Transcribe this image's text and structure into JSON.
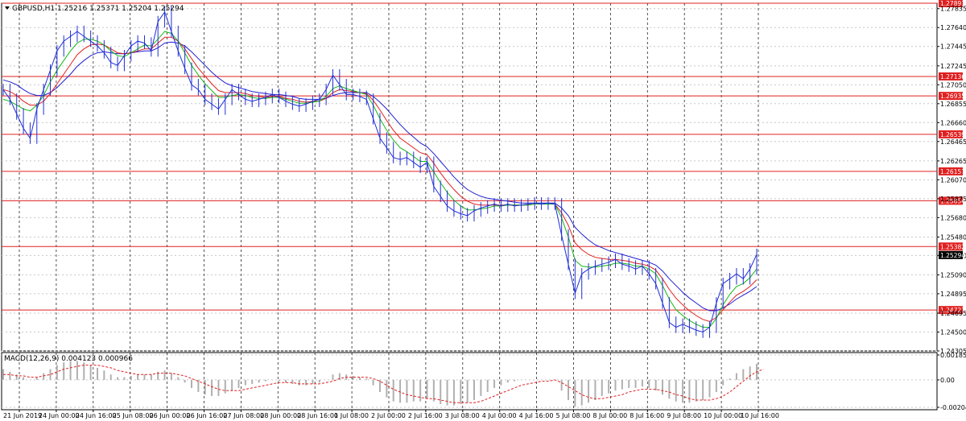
{
  "chart_header": {
    "title": "GBPUSD,H1  1.25216 1.25371 1.25204 1.25294",
    "menu_icon": "triangle-down-icon"
  },
  "macd_header": {
    "title": "MACD(12,26,9) 0.004123 0.000966"
  },
  "colors": {
    "price": "#1f2fd6",
    "ma_fast": "#16b816",
    "ma_mid": "#e02020",
    "ma_slow": "#2020d0",
    "levels": "#e02020",
    "macd_hist": "#b0b0b0",
    "macd_signal": "#e02020",
    "grid": "#c8c8c8",
    "price_tag": "#000000"
  },
  "chart_data": [
    {
      "type": "line",
      "name_printed": "GBPUSD,H1",
      "ylim": [
        1.24305,
        1.27891
      ],
      "y_ticks": [
        "1.27835",
        "1.27640",
        "1.27445",
        "1.27245",
        "1.27050",
        "1.26855",
        "1.26660",
        "1.26465",
        "1.26265",
        "1.26070",
        "1.25875",
        "1.25680",
        "1.25480",
        "1.25290",
        "1.25090",
        "1.24895",
        "1.24695",
        "1.24500",
        "1.24305"
      ],
      "x_ticks": [
        "21 Jun 2019",
        "24 Jun 00:00",
        "24 Jun 16:00",
        "25 Jun 08:00",
        "26 Jun 00:00",
        "26 Jun 16:00",
        "27 Jun 08:00",
        "28 Jun 00:00",
        "28 Jun 16:00",
        "1 Jul 08:00",
        "2 Jul 00:00",
        "2 Jul 16:00",
        "3 Jul 08:00",
        "4 Jul 00:00",
        "4 Jul 16:00",
        "5 Jul 08:00",
        "8 Jul 00:00",
        "8 Jul 16:00",
        "9 Jul 08:00",
        "10 Jul 00:00",
        "10 Jul 16:00"
      ],
      "levels": [
        "1.27891",
        "1.27136",
        "1.26935",
        "1.26539",
        "1.26157",
        "1.25854",
        "1.25382",
        "1.24727"
      ],
      "current_price": "1.25294",
      "close": [
        1.27,
        1.269,
        1.2675,
        1.266,
        1.265,
        1.268,
        1.27,
        1.272,
        1.274,
        1.275,
        1.2755,
        1.276,
        1.2755,
        1.275,
        1.2745,
        1.2738,
        1.2728,
        1.2725,
        1.2735,
        1.2745,
        1.275,
        1.2748,
        1.274,
        1.277,
        1.278,
        1.276,
        1.274,
        1.2722,
        1.2705,
        1.27,
        1.269,
        1.2685,
        1.268,
        1.269,
        1.27,
        1.2695,
        1.269,
        1.2688,
        1.269,
        1.2692,
        1.2695,
        1.2692,
        1.2688,
        1.2685,
        1.2683,
        1.2685,
        1.2688,
        1.269,
        1.27,
        1.2715,
        1.2705,
        1.2695,
        1.2695,
        1.2693,
        1.269,
        1.267,
        1.265,
        1.264,
        1.263,
        1.2628,
        1.263,
        1.2625,
        1.262,
        1.2625,
        1.26,
        1.259,
        1.258,
        1.2575,
        1.2572,
        1.257,
        1.2575,
        1.2578,
        1.258,
        1.2582,
        1.258,
        1.2582,
        1.258,
        1.2581,
        1.2582,
        1.2583,
        1.2582,
        1.2583,
        1.2582,
        1.255,
        1.252,
        1.249,
        1.251,
        1.2515,
        1.2518,
        1.252,
        1.2522,
        1.2525,
        1.252,
        1.2518,
        1.2515,
        1.2518,
        1.251,
        1.25,
        1.248,
        1.246,
        1.2455,
        1.2458,
        1.2455,
        1.2452,
        1.245,
        1.2455,
        1.248,
        1.25,
        1.2505,
        1.251,
        1.2505,
        1.2515,
        1.253
      ],
      "ma_fast": [
        1.269,
        1.2688,
        1.2684,
        1.268,
        1.2678,
        1.2684,
        1.2694,
        1.2708,
        1.272,
        1.273,
        1.274,
        1.2748,
        1.2752,
        1.2752,
        1.275,
        1.2746,
        1.274,
        1.2735,
        1.2734,
        1.2738,
        1.2742,
        1.2746,
        1.2745,
        1.2752,
        1.276,
        1.2758,
        1.275,
        1.2738,
        1.2725,
        1.2715,
        1.2706,
        1.2699,
        1.2692,
        1.2692,
        1.2694,
        1.2695,
        1.2694,
        1.2692,
        1.2691,
        1.2691,
        1.2692,
        1.2692,
        1.269,
        1.2688,
        1.2686,
        1.2686,
        1.2687,
        1.2688,
        1.2693,
        1.2701,
        1.2704,
        1.2701,
        1.2699,
        1.2697,
        1.2695,
        1.2684,
        1.267,
        1.2658,
        1.2648,
        1.264,
        1.2636,
        1.2631,
        1.2626,
        1.2626,
        1.2615,
        1.2604,
        1.2594,
        1.2586,
        1.258,
        1.2576,
        1.2576,
        1.2577,
        1.2578,
        1.258,
        1.258,
        1.2581,
        1.2581,
        1.2581,
        1.2581,
        1.2582,
        1.2582,
        1.2582,
        1.2582,
        1.2568,
        1.2548,
        1.2524,
        1.2518,
        1.2517,
        1.2517,
        1.2518,
        1.2519,
        1.2521,
        1.2521,
        1.252,
        1.2518,
        1.2518,
        1.2515,
        1.251,
        1.2498,
        1.2484,
        1.2473,
        1.2467,
        1.2462,
        1.2458,
        1.2455,
        1.2455,
        1.2464,
        1.2478,
        1.2489,
        1.2497,
        1.25,
        1.2506,
        1.2515
      ],
      "ma_mid": [
        1.27,
        1.2698,
        1.2694,
        1.2688,
        1.2684,
        1.2684,
        1.2688,
        1.2696,
        1.2706,
        1.2716,
        1.2726,
        1.2736,
        1.2742,
        1.2746,
        1.2747,
        1.2746,
        1.2742,
        1.2738,
        1.2737,
        1.2738,
        1.274,
        1.2742,
        1.2742,
        1.2748,
        1.2754,
        1.2754,
        1.275,
        1.2742,
        1.2732,
        1.2722,
        1.2714,
        1.2706,
        1.2699,
        1.2697,
        1.2697,
        1.2697,
        1.2696,
        1.2694,
        1.2693,
        1.2692,
        1.2693,
        1.2693,
        1.2691,
        1.269,
        1.2688,
        1.2687,
        1.2688,
        1.2688,
        1.2691,
        1.2697,
        1.27,
        1.2699,
        1.2698,
        1.2697,
        1.2696,
        1.2689,
        1.2679,
        1.2668,
        1.2658,
        1.265,
        1.2645,
        1.264,
        1.2635,
        1.2633,
        1.2624,
        1.2614,
        1.2605,
        1.2597,
        1.259,
        1.2585,
        1.2582,
        1.2581,
        1.2581,
        1.2581,
        1.2581,
        1.2581,
        1.2581,
        1.2581,
        1.2581,
        1.2582,
        1.2582,
        1.2582,
        1.2582,
        1.2573,
        1.256,
        1.2542,
        1.2535,
        1.253,
        1.2527,
        1.2526,
        1.2525,
        1.2525,
        1.2524,
        1.2523,
        1.2521,
        1.252,
        1.2518,
        1.2514,
        1.2505,
        1.2494,
        1.2485,
        1.2478,
        1.2472,
        1.2467,
        1.2463,
        1.2461,
        1.2465,
        1.2473,
        1.2481,
        1.2488,
        1.2492,
        1.2497,
        1.2504
      ],
      "ma_slow": [
        1.271,
        1.2708,
        1.2705,
        1.27,
        1.2696,
        1.2694,
        1.2694,
        1.2697,
        1.2702,
        1.2709,
        1.2716,
        1.2724,
        1.273,
        1.2735,
        1.2738,
        1.2739,
        1.2738,
        1.2737,
        1.2737,
        1.2738,
        1.2739,
        1.274,
        1.274,
        1.2743,
        1.2748,
        1.2749,
        1.2748,
        1.2745,
        1.2739,
        1.2732,
        1.2725,
        1.2718,
        1.2712,
        1.2707,
        1.2704,
        1.2702,
        1.27,
        1.2698,
        1.2697,
        1.2696,
        1.2695,
        1.2695,
        1.2694,
        1.2693,
        1.2691,
        1.269,
        1.269,
        1.269,
        1.2691,
        1.2694,
        1.2696,
        1.2697,
        1.2697,
        1.2697,
        1.2697,
        1.2693,
        1.2687,
        1.268,
        1.2672,
        1.2664,
        1.2657,
        1.2651,
        1.2645,
        1.2641,
        1.2634,
        1.2626,
        1.2618,
        1.261,
        1.2603,
        1.2597,
        1.2593,
        1.259,
        1.2588,
        1.2587,
        1.2586,
        1.2585,
        1.2584,
        1.2583,
        1.2583,
        1.2583,
        1.2583,
        1.2583,
        1.2583,
        1.2578,
        1.257,
        1.2558,
        1.2551,
        1.2545,
        1.254,
        1.2537,
        1.2534,
        1.2532,
        1.253,
        1.2528,
        1.2526,
        1.2524,
        1.2522,
        1.2519,
        1.2513,
        1.2505,
        1.2498,
        1.2491,
        1.2485,
        1.248,
        1.2475,
        1.2472,
        1.2472,
        1.2475,
        1.2479,
        1.2484,
        1.2488,
        1.2492,
        1.2497
      ]
    },
    {
      "type": "bar",
      "name_printed": "MACD(12,26,9)",
      "ylim": [
        -0.002041,
        0.001853
      ],
      "y_ticks": [
        "0.001853",
        "0.00",
        "-0.002041"
      ],
      "histogram": [
        0.0008,
        0.0006,
        0.0004,
        0.0002,
        0.0,
        0.0002,
        0.0005,
        0.0008,
        0.0011,
        0.0013,
        0.0014,
        0.0014,
        0.0013,
        0.0011,
        0.0009,
        0.0007,
        0.0004,
        0.0002,
        0.0002,
        0.0003,
        0.0004,
        0.0004,
        0.0004,
        0.0006,
        0.0007,
        0.0005,
        0.0002,
        -0.0002,
        -0.0006,
        -0.0009,
        -0.0011,
        -0.0012,
        -0.0012,
        -0.001,
        -0.0008,
        -0.0006,
        -0.0004,
        -0.0003,
        -0.0002,
        -0.0001,
        0.0,
        -0.0001,
        -0.0002,
        -0.0003,
        -0.0004,
        -0.0004,
        -0.0003,
        -0.0002,
        0.0,
        0.0004,
        0.0005,
        0.0004,
        0.0003,
        0.0002,
        0.0001,
        -0.0004,
        -0.0009,
        -0.0013,
        -0.0016,
        -0.0017,
        -0.0017,
        -0.0016,
        -0.0016,
        -0.0014,
        -0.0016,
        -0.0018,
        -0.0019,
        -0.0019,
        -0.0018,
        -0.0017,
        -0.0015,
        -0.0012,
        -0.0009,
        -0.0006,
        -0.0004,
        -0.0002,
        -0.0001,
        0.0,
        0.0,
        0.0,
        0.0,
        0.0,
        0.0,
        -0.0008,
        -0.0015,
        -0.002,
        -0.0019,
        -0.0017,
        -0.0015,
        -0.0012,
        -0.001,
        -0.0008,
        -0.0007,
        -0.0006,
        -0.0006,
        -0.0005,
        -0.0006,
        -0.0008,
        -0.0011,
        -0.0014,
        -0.0016,
        -0.0017,
        -0.0017,
        -0.0016,
        -0.0015,
        -0.0013,
        -0.0009,
        -0.0004,
        0.0001,
        0.0005,
        0.0008,
        0.001,
        0.0012
      ],
      "signal": [
        0.0004,
        0.0004,
        0.0003,
        0.0003,
        0.0002,
        0.0002,
        0.0003,
        0.0004,
        0.0006,
        0.0008,
        0.0009,
        0.001,
        0.0011,
        0.0011,
        0.0011,
        0.001,
        0.0009,
        0.0007,
        0.0006,
        0.0005,
        0.0004,
        0.0004,
        0.0004,
        0.0005,
        0.0005,
        0.0005,
        0.0004,
        0.0003,
        0.0001,
        -0.0001,
        -0.0003,
        -0.0005,
        -0.0007,
        -0.0008,
        -0.0008,
        -0.0008,
        -0.0007,
        -0.0006,
        -0.0005,
        -0.0004,
        -0.0003,
        -0.0002,
        -0.0002,
        -0.0002,
        -0.0003,
        -0.0003,
        -0.0003,
        -0.0003,
        -0.0002,
        -0.0001,
        0.0001,
        0.0002,
        0.0002,
        0.0002,
        0.0002,
        0.0001,
        -0.0001,
        -0.0004,
        -0.0007,
        -0.0009,
        -0.0011,
        -0.0012,
        -0.0013,
        -0.0014,
        -0.0014,
        -0.0015,
        -0.0016,
        -0.0017,
        -0.0017,
        -0.0017,
        -0.0017,
        -0.0016,
        -0.0014,
        -0.0012,
        -0.001,
        -0.0008,
        -0.0006,
        -0.0004,
        -0.0003,
        -0.0002,
        -0.0001,
        -0.0001,
        0.0,
        -0.0002,
        -0.0005,
        -0.0008,
        -0.0011,
        -0.0013,
        -0.0014,
        -0.0014,
        -0.0013,
        -0.0012,
        -0.0011,
        -0.0009,
        -0.0008,
        -0.0007,
        -0.0007,
        -0.0007,
        -0.0008,
        -0.0009,
        -0.0011,
        -0.0012,
        -0.0014,
        -0.0015,
        -0.0015,
        -0.0015,
        -0.0014,
        -0.0012,
        -0.0009,
        -0.0005,
        -0.0001,
        0.0003,
        0.0006,
        0.0008
      ]
    }
  ]
}
